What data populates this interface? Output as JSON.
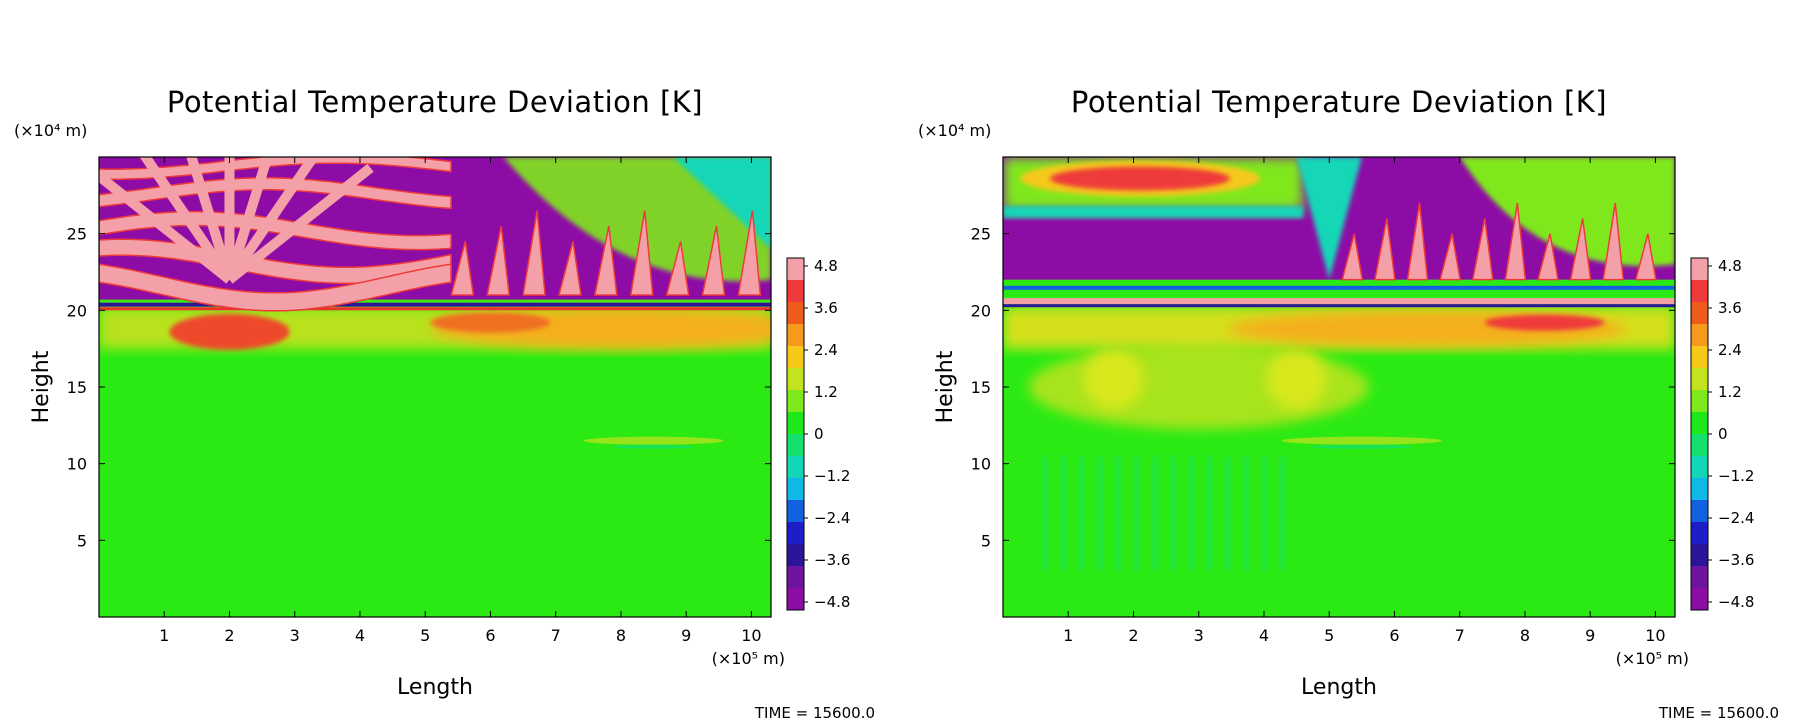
{
  "chart_data": [
    {
      "type": "heatmap",
      "title": "Potential Temperature Deviation [K]",
      "xlabel": "Length",
      "ylabel": "Height",
      "x_unit": "(×10⁵ m)",
      "y_unit": "(×10⁴ m)",
      "x_ticks": [
        1,
        2,
        3,
        4,
        5,
        6,
        7,
        8,
        9,
        10
      ],
      "y_ticks": [
        5,
        10,
        15,
        20,
        25
      ],
      "xlim": [
        0,
        10.3
      ],
      "ylim": [
        0,
        30
      ],
      "colorbar": {
        "ticks": [
          "4.8",
          "3.6",
          "2.4",
          "1.2",
          "0",
          "−1.2",
          "−2.4",
          "−3.6",
          "−4.8"
        ],
        "range": [
          -4.8,
          4.8
        ]
      },
      "time_label": "TIME = 15600.0",
      "features": [
        {
          "region": "heights 0–16",
          "value": 0.0,
          "description": "near-zero field"
        },
        {
          "region": "heights ~17–20",
          "value": 2.4,
          "description": "warm band, strongest near x=2 and x=5.5–10"
        },
        {
          "region": "height ~20.3",
          "value": -4.8,
          "description": "thin cold line"
        },
        {
          "region": "heights 21–30",
          "value": "±4.8",
          "description": "alternating pink/purple fan bands centered x≈2; wave crests x=5–10"
        },
        {
          "region": "x 8–10, height ~11.5",
          "value": 0.6,
          "description": "weak wave feature"
        }
      ]
    },
    {
      "type": "heatmap",
      "title": "Potential Temperature Deviation [K]",
      "xlabel": "Length",
      "ylabel": "Height",
      "x_unit": "(×10⁵ m)",
      "y_unit": "(×10⁴ m)",
      "x_ticks": [
        1,
        2,
        3,
        4,
        5,
        6,
        7,
        8,
        9,
        10
      ],
      "y_ticks": [
        5,
        10,
        15,
        20,
        25
      ],
      "xlim": [
        0,
        10.3
      ],
      "ylim": [
        0,
        30
      ],
      "colorbar": {
        "ticks": [
          "4.8",
          "3.6",
          "2.4",
          "1.2",
          "0",
          "−1.2",
          "−2.4",
          "−3.6",
          "−4.8"
        ],
        "range": [
          -4.8,
          4.8
        ]
      },
      "time_label": "TIME = 15600.0",
      "features": [
        {
          "region": "heights 0–10",
          "value": -0.3,
          "description": "slightly cool streaks under x=1–4"
        },
        {
          "region": "heights 11–20",
          "value": 1.0,
          "description": "warm plumes x=1–5"
        },
        {
          "region": "heights ~17–20",
          "value": 2.4,
          "description": "warm band"
        },
        {
          "region": "heights 20–22",
          "value": "±4.8",
          "description": "thin alternating bands"
        },
        {
          "region": "heights 22–26, x 0–4",
          "value": -4.8,
          "description": "cold dome"
        },
        {
          "region": "heights 27–29.5, x 1–3",
          "value": 4.0,
          "description": "warm lens"
        },
        {
          "region": "heights 21–30, x 5–10",
          "value": "±4.8",
          "description": "wave crests"
        }
      ]
    }
  ]
}
